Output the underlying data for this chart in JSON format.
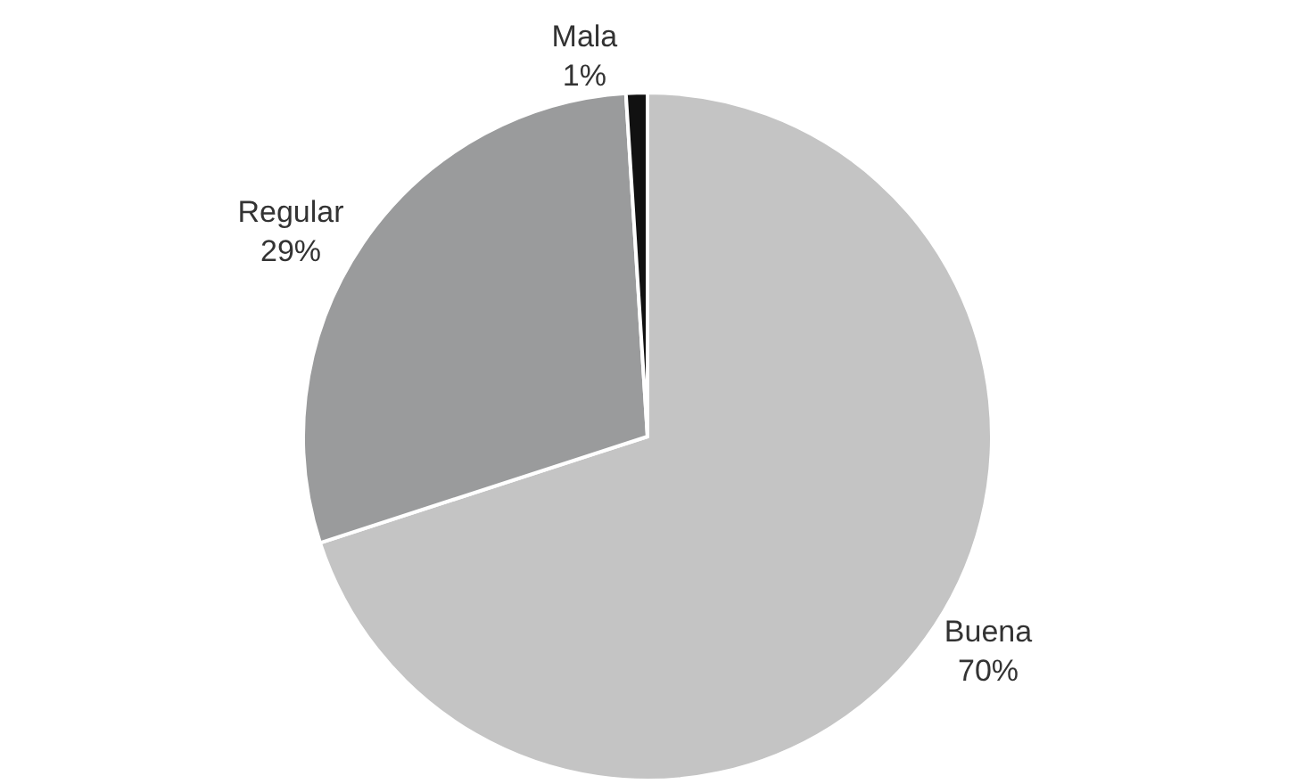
{
  "chart_data": {
    "type": "pie",
    "categories": [
      "Buena",
      "Regular",
      "Mala"
    ],
    "values": [
      70,
      29,
      1
    ],
    "value_labels": [
      "70%",
      "29%",
      "1%"
    ],
    "colors": [
      "#c4c4c4",
      "#9a9b9c",
      "#111111"
    ],
    "legend": false
  }
}
